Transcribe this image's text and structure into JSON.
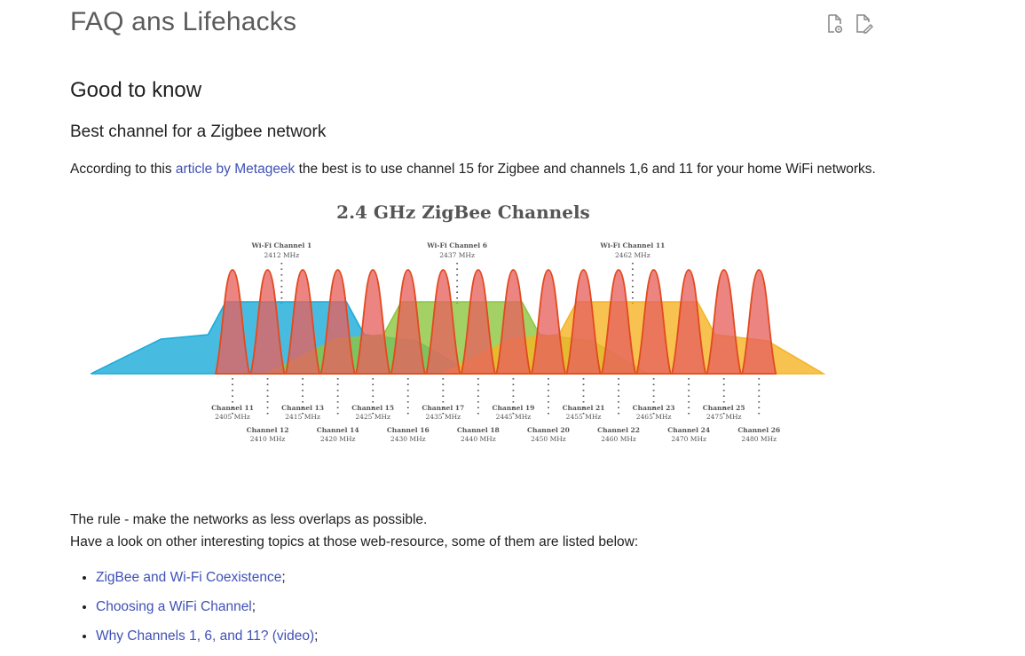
{
  "header": {
    "title": "FAQ ans Lifehacks",
    "actions": [
      {
        "icon": "view-source-icon"
      },
      {
        "icon": "edit-page-icon"
      }
    ]
  },
  "section": {
    "heading": "Good to know",
    "subheading": "Best channel for a Zigbee network",
    "intro": {
      "before": "According to this ",
      "link": "article by Metageek",
      "after": " the best is to use channel 15 for Zigbee and channels 1,6 and 11 for your home WiFi networks."
    }
  },
  "figure": {
    "title": "2.4 GHz ZigBee Channels",
    "wifi_markers": [
      {
        "name": "Wi-Fi Channel 1",
        "freq": "2412 MHz",
        "mhz": 2412
      },
      {
        "name": "Wi-Fi Channel 6",
        "freq": "2437 MHz",
        "mhz": 2437
      },
      {
        "name": "Wi-Fi Channel 11",
        "freq": "2462 MHz",
        "mhz": 2462
      }
    ],
    "zigbee_channels": [
      {
        "name": "Channel 11",
        "freq": "2405 MHz",
        "mhz": 2405
      },
      {
        "name": "Channel 12",
        "freq": "2410 MHz",
        "mhz": 2410
      },
      {
        "name": "Channel 13",
        "freq": "2415 MHz",
        "mhz": 2415
      },
      {
        "name": "Channel 14",
        "freq": "2420 MHz",
        "mhz": 2420
      },
      {
        "name": "Channel 15",
        "freq": "2425 MHz",
        "mhz": 2425
      },
      {
        "name": "Channel 16",
        "freq": "2430 MHz",
        "mhz": 2430
      },
      {
        "name": "Channel 17",
        "freq": "2435 MHz",
        "mhz": 2435
      },
      {
        "name": "Channel 18",
        "freq": "2440 MHz",
        "mhz": 2440
      },
      {
        "name": "Channel 19",
        "freq": "2445 MHz",
        "mhz": 2445
      },
      {
        "name": "Channel 20",
        "freq": "2450 MHz",
        "mhz": 2450
      },
      {
        "name": "Channel 21",
        "freq": "2455 MHz",
        "mhz": 2455
      },
      {
        "name": "Channel 22",
        "freq": "2460 MHz",
        "mhz": 2460
      },
      {
        "name": "Channel 23",
        "freq": "2465 MHz",
        "mhz": 2465
      },
      {
        "name": "Channel 24",
        "freq": "2470 MHz",
        "mhz": 2470
      },
      {
        "name": "Channel 25",
        "freq": "2475 MHz",
        "mhz": 2475
      },
      {
        "name": "Channel 26",
        "freq": "2480 MHz",
        "mhz": 2480
      }
    ],
    "colors": {
      "wifi1": "#1aaad8",
      "wifi6": "#8cc63f",
      "wifi11": "#f5b323",
      "zigbee_fill": "#e7625f",
      "zigbee_stroke": "#e24a1f",
      "text": "#555555",
      "dots": "#555555"
    }
  },
  "body": {
    "rule": "The rule - make the networks as less overlaps as possible.",
    "lookup": "Have a look on other interesting topics at those web-resource, some of them are listed below:"
  },
  "links": [
    {
      "label": "ZigBee and Wi-Fi Coexistence",
      "suffix": ";"
    },
    {
      "label": "Choosing a WiFi Channel",
      "suffix": ";"
    },
    {
      "label": "Why Channels 1, 6, and 11? (video)",
      "suffix": ";"
    }
  ]
}
